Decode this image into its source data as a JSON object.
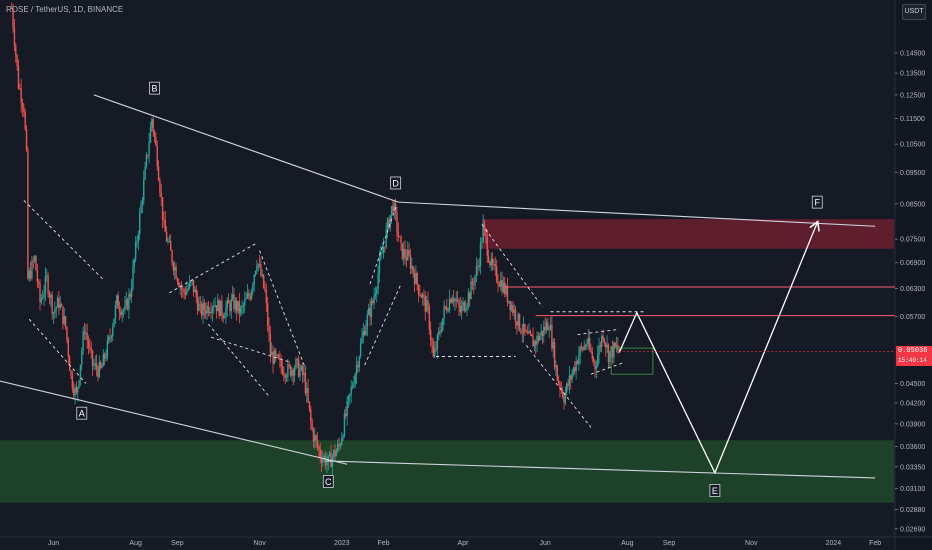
{
  "header": {
    "symbol_title": "ROSE / TetherUS, 1D, BINANCE",
    "currency": "USDT"
  },
  "last_price": {
    "price": "0.05036",
    "countdown": "15:40:14"
  },
  "colors": {
    "background": "#161a25",
    "up": "#26a69a",
    "down": "#ef5350",
    "supply_zone": "#6b2030",
    "demand_zone": "#1f4a2a",
    "lines": "#d1d4dc",
    "red_level": "#ff5b6e",
    "last_price": "#f23645"
  },
  "chart_data": {
    "type": "candlestick",
    "title": "",
    "ylabel": "",
    "xlabel": "",
    "y_scale": "log",
    "ylim": [
      0.0265,
      0.17
    ],
    "y_ticks": [
      "0.14500",
      "0.13500",
      "0.12500",
      "0.11500",
      "0.10500",
      "0.09500",
      "0.08500",
      "0.07500",
      "0.06900",
      "0.06300",
      "0.05700",
      "0.04500",
      "0.04200",
      "0.03900",
      "0.03600",
      "0.03350",
      "0.03100",
      "0.02880",
      "0.02690"
    ],
    "x_ticks": [
      "Jun",
      "Aug",
      "Sep",
      "Nov",
      "2023",
      "Feb",
      "Apr",
      "Jun",
      "Aug",
      "Sep",
      "Nov",
      "2024",
      "Feb"
    ],
    "last_price": 0.05036,
    "price_series": [
      [
        "2022-05-01",
        0.17
      ],
      [
        "2022-05-06",
        0.13
      ],
      [
        "2022-05-10",
        0.12
      ],
      [
        "2022-05-12",
        0.1
      ],
      [
        "2022-05-13",
        0.065
      ],
      [
        "2022-05-18",
        0.07
      ],
      [
        "2022-05-22",
        0.06
      ],
      [
        "2022-05-27",
        0.065
      ],
      [
        "2022-06-01",
        0.058
      ],
      [
        "2022-06-05",
        0.06
      ],
      [
        "2022-06-10",
        0.055
      ],
      [
        "2022-06-14",
        0.046
      ],
      [
        "2022-06-18",
        0.043
      ],
      [
        "2022-06-24",
        0.055
      ],
      [
        "2022-06-30",
        0.048
      ],
      [
        "2022-07-06",
        0.047
      ],
      [
        "2022-07-12",
        0.052
      ],
      [
        "2022-07-18",
        0.06
      ],
      [
        "2022-07-24",
        0.058
      ],
      [
        "2022-07-28",
        0.062
      ],
      [
        "2022-08-03",
        0.078
      ],
      [
        "2022-08-08",
        0.095
      ],
      [
        "2022-08-13",
        0.115
      ],
      [
        "2022-08-17",
        0.1
      ],
      [
        "2022-08-22",
        0.078
      ],
      [
        "2022-08-28",
        0.07
      ],
      [
        "2022-09-05",
        0.062
      ],
      [
        "2022-09-12",
        0.064
      ],
      [
        "2022-09-18",
        0.058
      ],
      [
        "2022-09-28",
        0.06
      ],
      [
        "2022-10-05",
        0.058
      ],
      [
        "2022-10-12",
        0.06
      ],
      [
        "2022-10-18",
        0.058
      ],
      [
        "2022-10-25",
        0.062
      ],
      [
        "2022-10-30",
        0.07
      ],
      [
        "2022-11-05",
        0.062
      ],
      [
        "2022-11-09",
        0.05
      ],
      [
        "2022-11-16",
        0.048
      ],
      [
        "2022-11-22",
        0.047
      ],
      [
        "2022-11-28",
        0.048
      ],
      [
        "2022-12-04",
        0.046
      ],
      [
        "2022-12-10",
        0.038
      ],
      [
        "2022-12-16",
        0.035
      ],
      [
        "2022-12-22",
        0.034
      ],
      [
        "2022-12-30",
        0.036
      ],
      [
        "2023-01-06",
        0.042
      ],
      [
        "2023-01-12",
        0.048
      ],
      [
        "2023-01-18",
        0.055
      ],
      [
        "2023-01-24",
        0.06
      ],
      [
        "2023-01-30",
        0.07
      ],
      [
        "2023-02-05",
        0.08
      ],
      [
        "2023-02-08",
        0.085
      ],
      [
        "2023-02-14",
        0.072
      ],
      [
        "2023-02-20",
        0.07
      ],
      [
        "2023-02-26",
        0.064
      ],
      [
        "2023-03-06",
        0.058
      ],
      [
        "2023-03-10",
        0.049
      ],
      [
        "2023-03-18",
        0.058
      ],
      [
        "2023-03-24",
        0.062
      ],
      [
        "2023-03-30",
        0.058
      ],
      [
        "2023-04-06",
        0.062
      ],
      [
        "2023-04-12",
        0.068
      ],
      [
        "2023-04-16",
        0.078
      ],
      [
        "2023-04-22",
        0.068
      ],
      [
        "2023-04-30",
        0.064
      ],
      [
        "2023-05-06",
        0.06
      ],
      [
        "2023-05-12",
        0.056
      ],
      [
        "2023-05-18",
        0.053
      ],
      [
        "2023-05-24",
        0.052
      ],
      [
        "2023-05-30",
        0.054
      ],
      [
        "2023-06-04",
        0.056
      ],
      [
        "2023-06-10",
        0.046
      ],
      [
        "2023-06-15",
        0.043
      ],
      [
        "2023-06-20",
        0.046
      ],
      [
        "2023-06-26",
        0.05
      ],
      [
        "2023-07-02",
        0.052
      ],
      [
        "2023-07-08",
        0.048
      ],
      [
        "2023-07-14",
        0.054
      ],
      [
        "2023-07-18",
        0.05
      ],
      [
        "2023-07-24",
        0.051
      ],
      [
        "2023-07-26",
        0.05036
      ]
    ],
    "zones": [
      {
        "name": "supply-zone",
        "from": "2023-04-15",
        "to": "2024-02-15",
        "low": 0.0725,
        "high": 0.0805
      },
      {
        "name": "demand-zone",
        "from": "2022-04-15",
        "to": "2024-02-15",
        "low": 0.0295,
        "high": 0.0368
      }
    ],
    "levels": [
      {
        "name": "red-level-upper",
        "from": "2023-05-01",
        "to": "2024-02-15",
        "y": 0.0633
      },
      {
        "name": "red-level-lower",
        "from": "2023-05-25",
        "to": "2024-02-15",
        "y": 0.0572
      }
    ],
    "trendlines": [
      {
        "name": "trendline-upper-bd",
        "x1": "2022-07-01",
        "y1": 0.125,
        "x2": "2023-02-12",
        "y2": 0.0855
      },
      {
        "name": "trendline-upper-df",
        "x1": "2023-02-12",
        "y1": 0.0855,
        "x2": "2024-02-01",
        "y2": 0.0785
      },
      {
        "name": "trendline-lower-ac",
        "x1": "2022-04-20",
        "y1": 0.0455,
        "x2": "2023-01-05",
        "y2": 0.0338
      },
      {
        "name": "trendline-lower-ce",
        "x1": "2022-12-20",
        "y1": 0.0342,
        "x2": "2024-02-01",
        "y2": 0.0322
      }
    ],
    "projection": [
      [
        "2023-07-26",
        0.0502
      ],
      [
        "2023-08-08",
        0.0578
      ],
      [
        "2023-10-05",
        0.0328
      ],
      [
        "2023-12-20",
        0.0795
      ]
    ],
    "target_box": {
      "from": "2023-07-20",
      "to": "2023-08-20",
      "low": 0.0465,
      "high": 0.051
    },
    "wave_labels": [
      {
        "text": "A",
        "x": "2022-06-22",
        "y": 0.0405
      },
      {
        "text": "B",
        "x": "2022-08-15",
        "y": 0.128
      },
      {
        "text": "C",
        "x": "2022-12-22",
        "y": 0.0318
      },
      {
        "text": "D",
        "x": "2023-02-10",
        "y": 0.0915
      },
      {
        "text": "E",
        "x": "2023-10-05",
        "y": 0.0308
      },
      {
        "text": "F",
        "x": "2023-12-20",
        "y": 0.0855
      }
    ],
    "dashed_patterns": [
      [
        [
          "2022-05-10",
          0.086
        ],
        [
          "2022-07-08",
          0.065
        ],
        [
          "2022-05-14",
          0.0565
        ],
        [
          "2022-06-25",
          0.045
        ]
      ],
      [
        [
          "2022-08-26",
          0.062
        ],
        [
          "2022-10-30",
          0.074
        ],
        [
          "2022-09-26",
          0.053
        ],
        [
          "2022-11-24",
          0.0485
        ]
      ],
      [
        [
          "2022-11-01",
          0.072
        ],
        [
          "2022-12-05",
          0.0475
        ],
        [
          "2022-09-24",
          0.0555
        ],
        [
          "2022-11-08",
          0.043
        ]
      ],
      [
        [
          "2023-01-22",
          0.064
        ],
        [
          "2023-02-10",
          0.084
        ],
        [
          "2023-01-18",
          0.048
        ],
        [
          "2023-02-14",
          0.064
        ]
      ],
      [
        [
          "2023-04-15",
          0.079
        ],
        [
          "2023-05-30",
          0.059
        ],
        [
          "2023-03-12",
          0.0495
        ],
        [
          "2023-05-10",
          0.0495
        ]
      ],
      [
        [
          "2023-05-18",
          0.0515
        ],
        [
          "2023-07-05",
          0.0385
        ],
        [
          "2023-06-05",
          0.058
        ],
        [
          "2023-08-15",
          0.058
        ]
      ],
      [
        [
          "2023-06-25",
          0.0535
        ],
        [
          "2023-07-26",
          0.0545
        ],
        [
          "2023-07-05",
          0.0465
        ],
        [
          "2023-07-30",
          0.0485
        ]
      ]
    ]
  }
}
